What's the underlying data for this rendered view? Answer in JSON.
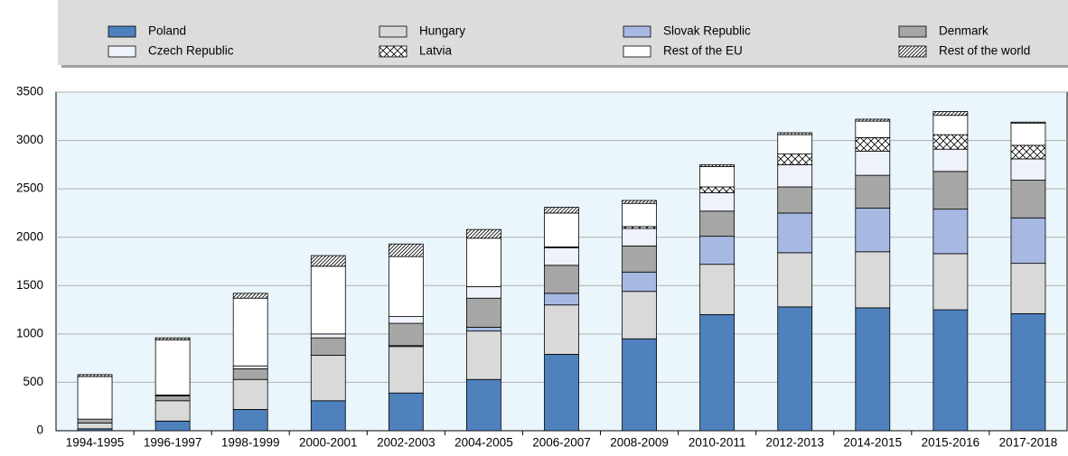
{
  "chart_data": {
    "type": "stacked_bar",
    "categories": [
      "1994-1995",
      "1996-1997",
      "1998-1999",
      "2000-2001",
      "2002-2003",
      "2004-2005",
      "2006-2007",
      "2008-2009",
      "2010-2011",
      "2012-2013",
      "2014-2015",
      "2015-2016",
      "2017-2018"
    ],
    "series": [
      {
        "name": "Poland",
        "color": "#4f81bd",
        "values": [
          20,
          100,
          220,
          310,
          390,
          530,
          790,
          950,
          1200,
          1280,
          1270,
          1250,
          1210
        ]
      },
      {
        "name": "Hungary",
        "color": "#d9d9d9",
        "values": [
          60,
          210,
          310,
          470,
          480,
          500,
          510,
          490,
          520,
          560,
          580,
          580,
          520
        ]
      },
      {
        "name": "Slovak Republic",
        "color": "#a7b9e3",
        "values": [
          0,
          0,
          0,
          0,
          10,
          40,
          120,
          200,
          290,
          410,
          450,
          460,
          470
        ]
      },
      {
        "name": "Denmark",
        "color": "#a6a6a6",
        "values": [
          40,
          50,
          110,
          180,
          230,
          300,
          290,
          270,
          260,
          270,
          340,
          390,
          390
        ]
      },
      {
        "name": "Czech Republic",
        "color": "#eef2fa",
        "values": [
          0,
          10,
          30,
          40,
          70,
          120,
          180,
          180,
          190,
          230,
          250,
          230,
          220
        ]
      },
      {
        "name": "Latvia",
        "color": "#ffffff",
        "pattern": "cross",
        "values": [
          0,
          0,
          0,
          0,
          0,
          0,
          10,
          20,
          60,
          110,
          140,
          150,
          140
        ]
      },
      {
        "name": "Rest of the EU",
        "color": "#ffffff",
        "values": [
          440,
          570,
          700,
          700,
          620,
          500,
          350,
          240,
          210,
          200,
          170,
          200,
          230
        ]
      },
      {
        "name": "Rest of the world",
        "color": "#ffffff",
        "pattern": "hatch",
        "values": [
          20,
          20,
          50,
          110,
          130,
          90,
          60,
          30,
          20,
          20,
          20,
          40,
          10
        ]
      }
    ],
    "ylim": [
      0,
      3500
    ],
    "yticks": [
      0,
      500,
      1000,
      1500,
      2000,
      2500,
      3000,
      3500
    ],
    "grid": true
  }
}
